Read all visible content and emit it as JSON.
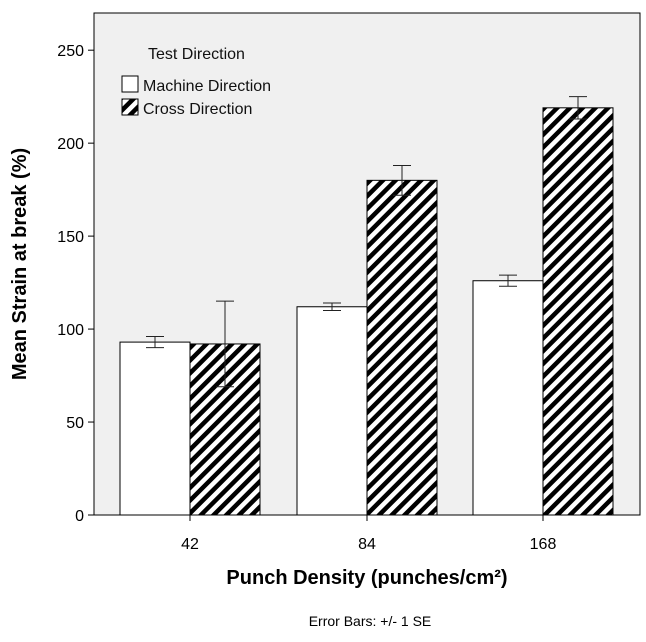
{
  "chart_data": {
    "type": "bar",
    "title": "",
    "xlabel": "Punch Density (punches/cm²)",
    "ylabel": "Mean Strain at break (%)",
    "categories": [
      "42",
      "84",
      "168"
    ],
    "ylim": [
      0,
      270
    ],
    "yticks": [
      0,
      50,
      100,
      150,
      200,
      250
    ],
    "grid": false,
    "legend": {
      "title": "Test Direction",
      "placement": "top-left"
    },
    "series": [
      {
        "name": "Machine Direction",
        "values": [
          93,
          112,
          126
        ],
        "error": [
          3,
          2,
          3
        ],
        "fill": "white"
      },
      {
        "name": "Cross Direction",
        "values": [
          92,
          180,
          219
        ],
        "error": [
          23,
          8,
          6
        ],
        "fill": "hatched"
      }
    ],
    "note": "Error Bars: +/- 1 SE"
  },
  "colors": {
    "plot_background": "#f0f0f0",
    "bar_outline": "#000000",
    "bar_fill_machine": "#ffffff",
    "hatch": "#000000"
  }
}
